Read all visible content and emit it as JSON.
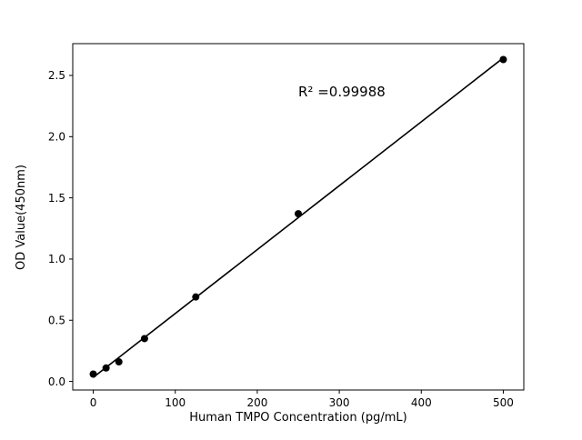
{
  "chart_data": {
    "type": "scatter",
    "fit_line": true,
    "xlabel": "Human TMPO Concentration (pg/mL)",
    "ylabel": "OD Value(450nm)",
    "annotation": "R² =0.99988",
    "x": [
      0,
      15.625,
      31.25,
      62.5,
      125,
      250,
      500
    ],
    "y": [
      0.06,
      0.11,
      0.16,
      0.35,
      0.69,
      1.37,
      2.63
    ],
    "xtick_values": [
      0,
      100,
      200,
      300,
      400,
      500
    ],
    "xtick_labels": [
      "0",
      "100",
      "200",
      "300",
      "400",
      "500"
    ],
    "ytick_values": [
      0,
      0.5,
      1.0,
      1.5,
      2.0,
      2.5
    ],
    "ytick_labels": [
      "0.0",
      "0.5",
      "1.0",
      "1.5",
      "2.0",
      "2.5"
    ],
    "xlim": [
      -25,
      525
    ],
    "ylim": [
      -0.07,
      2.76
    ],
    "marker_color": "#000000",
    "line_color": "#000000",
    "background_color": "#ffffff",
    "grid": false,
    "legend_position": "none"
  }
}
